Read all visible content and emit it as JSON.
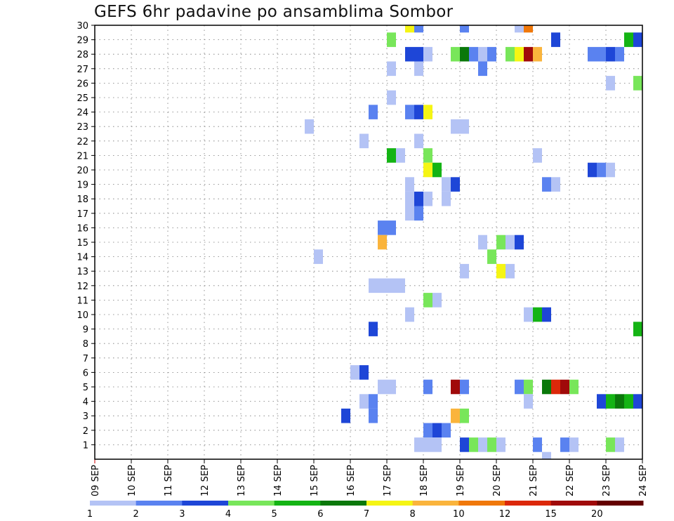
{
  "chart_data": {
    "type": "heatmap",
    "title": "GEFS 6hr padavine po ansamblima Sombor",
    "x_tick_labels": [
      "09 SEP",
      "10 SEP",
      "11 SEP",
      "12 SEP",
      "13 SEP",
      "14 SEP",
      "15 SEP",
      "16 SEP",
      "17 SEP",
      "18 SEP",
      "19 SEP",
      "20 SEP",
      "21 SEP",
      "22 SEP",
      "23 SEP",
      "24 SEP"
    ],
    "y_tick_labels": [
      "1",
      "2",
      "3",
      "4",
      "5",
      "6",
      "7",
      "8",
      "9",
      "10",
      "11",
      "12",
      "13",
      "14",
      "15",
      "16",
      "17",
      "18",
      "19",
      "20",
      "21",
      "22",
      "23",
      "24",
      "25",
      "26",
      "27",
      "28",
      "29",
      "30"
    ],
    "x_range_days": [
      9,
      24
    ],
    "y_range": [
      0,
      30
    ],
    "grid": true,
    "colorbar": {
      "labels": [
        "1",
        "2",
        "3",
        "4",
        "5",
        "6",
        "7",
        "8",
        "10",
        "12",
        "15",
        "20"
      ],
      "colors": [
        "#b4c3f5",
        "#5a82f0",
        "#1e46d7",
        "#78e65a",
        "#14b414",
        "#0a780a",
        "#f5f514",
        "#fab43c",
        "#f0780a",
        "#dc280a",
        "#a00a0a",
        "#640000"
      ]
    },
    "cells_note": "each cell: [member, day_start, day_end, color_level_index]",
    "cells": [
      [
        30,
        17.5,
        17.75,
        6
      ],
      [
        30,
        17.75,
        18.0,
        1
      ],
      [
        30,
        19.0,
        19.25,
        1
      ],
      [
        30,
        20.5,
        20.75,
        0
      ],
      [
        30,
        20.75,
        21.0,
        8
      ],
      [
        29,
        17.0,
        17.25,
        3
      ],
      [
        29,
        21.5,
        21.75,
        2
      ],
      [
        29,
        23.5,
        23.75,
        4
      ],
      [
        29,
        23.75,
        24.0,
        2
      ],
      [
        28,
        17.5,
        17.75,
        2
      ],
      [
        28,
        17.75,
        18.0,
        2
      ],
      [
        28,
        18.0,
        18.25,
        0
      ],
      [
        28,
        18.75,
        19.0,
        3
      ],
      [
        28,
        19.0,
        19.25,
        5
      ],
      [
        28,
        19.25,
        19.5,
        1
      ],
      [
        28,
        19.5,
        19.75,
        0
      ],
      [
        28,
        19.75,
        20.0,
        1
      ],
      [
        28,
        20.25,
        20.5,
        3
      ],
      [
        28,
        20.5,
        20.75,
        6
      ],
      [
        28,
        20.75,
        21.0,
        10
      ],
      [
        28,
        21.0,
        21.25,
        7
      ],
      [
        28,
        22.5,
        22.75,
        1
      ],
      [
        28,
        22.75,
        23.0,
        1
      ],
      [
        28,
        23.0,
        23.25,
        2
      ],
      [
        28,
        23.25,
        23.5,
        1
      ],
      [
        27,
        17.0,
        17.25,
        0
      ],
      [
        27,
        17.75,
        18.0,
        0
      ],
      [
        27,
        19.5,
        19.75,
        1
      ],
      [
        26,
        23.0,
        23.25,
        0
      ],
      [
        26,
        23.75,
        24.0,
        3
      ],
      [
        25,
        17.0,
        17.25,
        0
      ],
      [
        24,
        16.5,
        16.75,
        1
      ],
      [
        24,
        17.5,
        17.75,
        1
      ],
      [
        24,
        17.75,
        18.0,
        2
      ],
      [
        24,
        18.0,
        18.25,
        6
      ],
      [
        23,
        14.75,
        15.0,
        0
      ],
      [
        23,
        18.75,
        19.0,
        0
      ],
      [
        23,
        19.0,
        19.25,
        0
      ],
      [
        22,
        16.25,
        16.5,
        0
      ],
      [
        22,
        17.75,
        18.0,
        0
      ],
      [
        21,
        17.0,
        17.25,
        4
      ],
      [
        21,
        17.25,
        17.5,
        0
      ],
      [
        21,
        18.0,
        18.25,
        3
      ],
      [
        21,
        21.0,
        21.25,
        0
      ],
      [
        20,
        18.0,
        18.25,
        6
      ],
      [
        20,
        18.25,
        18.5,
        4
      ],
      [
        20,
        22.5,
        22.75,
        2
      ],
      [
        20,
        22.75,
        23.0,
        1
      ],
      [
        20,
        23.0,
        23.25,
        0
      ],
      [
        19,
        17.5,
        17.75,
        0
      ],
      [
        19,
        18.5,
        18.75,
        0
      ],
      [
        19,
        18.75,
        19.0,
        2
      ],
      [
        19,
        21.25,
        21.5,
        1
      ],
      [
        19,
        21.5,
        21.75,
        0
      ],
      [
        18,
        17.5,
        17.75,
        0
      ],
      [
        18,
        17.75,
        18.0,
        2
      ],
      [
        18,
        18.0,
        18.25,
        0
      ],
      [
        18,
        18.5,
        18.75,
        0
      ],
      [
        17,
        17.5,
        17.75,
        0
      ],
      [
        17,
        17.75,
        18.0,
        1
      ],
      [
        16,
        16.75,
        17.0,
        1
      ],
      [
        16,
        17.0,
        17.25,
        1
      ],
      [
        15,
        16.75,
        17.0,
        7
      ],
      [
        15,
        19.5,
        19.75,
        0
      ],
      [
        15,
        20.0,
        20.25,
        3
      ],
      [
        15,
        20.25,
        20.5,
        0
      ],
      [
        15,
        20.5,
        20.75,
        2
      ],
      [
        14,
        15.0,
        15.25,
        0
      ],
      [
        14,
        19.75,
        20.0,
        3
      ],
      [
        13,
        19.0,
        19.25,
        0
      ],
      [
        13,
        20.0,
        20.25,
        6
      ],
      [
        13,
        20.25,
        20.5,
        0
      ],
      [
        12,
        16.5,
        16.75,
        0
      ],
      [
        12,
        16.75,
        17.0,
        0
      ],
      [
        12,
        17.0,
        17.25,
        0
      ],
      [
        12,
        17.25,
        17.5,
        0
      ],
      [
        11,
        18.0,
        18.25,
        3
      ],
      [
        11,
        18.25,
        18.5,
        0
      ],
      [
        10,
        17.5,
        17.75,
        0
      ],
      [
        10,
        20.75,
        21.0,
        0
      ],
      [
        10,
        21.0,
        21.25,
        4
      ],
      [
        10,
        21.25,
        21.5,
        2
      ],
      [
        9,
        16.5,
        16.75,
        2
      ],
      [
        9,
        23.75,
        24.0,
        4
      ],
      [
        6,
        16.0,
        16.25,
        0
      ],
      [
        6,
        16.25,
        16.5,
        2
      ],
      [
        5,
        16.75,
        17.0,
        0
      ],
      [
        5,
        17.0,
        17.25,
        0
      ],
      [
        5,
        18.0,
        18.25,
        1
      ],
      [
        5,
        18.75,
        19.0,
        10
      ],
      [
        5,
        19.0,
        19.25,
        1
      ],
      [
        5,
        20.5,
        20.75,
        1
      ],
      [
        5,
        20.75,
        21.0,
        3
      ],
      [
        5,
        21.25,
        21.5,
        5
      ],
      [
        5,
        21.5,
        21.75,
        9
      ],
      [
        5,
        21.75,
        22.0,
        10
      ],
      [
        5,
        22.0,
        22.25,
        3
      ],
      [
        4,
        16.25,
        16.5,
        0
      ],
      [
        4,
        16.5,
        16.75,
        1
      ],
      [
        4,
        20.75,
        21.0,
        0
      ],
      [
        4,
        22.75,
        23.0,
        2
      ],
      [
        4,
        23.0,
        23.25,
        4
      ],
      [
        4,
        23.25,
        23.5,
        5
      ],
      [
        4,
        23.5,
        23.75,
        4
      ],
      [
        4,
        23.75,
        24.0,
        2
      ],
      [
        3,
        15.75,
        16.0,
        2
      ],
      [
        3,
        16.5,
        16.75,
        1
      ],
      [
        3,
        18.75,
        19.0,
        7
      ],
      [
        3,
        19.0,
        19.25,
        3
      ],
      [
        2,
        18.0,
        18.25,
        1
      ],
      [
        2,
        18.25,
        18.5,
        2
      ],
      [
        2,
        18.5,
        18.75,
        1
      ],
      [
        1,
        17.75,
        18.0,
        0
      ],
      [
        1,
        18.0,
        18.25,
        0
      ],
      [
        1,
        18.25,
        18.5,
        0
      ],
      [
        1,
        19.0,
        19.25,
        2
      ],
      [
        1,
        19.25,
        19.5,
        3
      ],
      [
        1,
        19.5,
        19.75,
        0
      ],
      [
        1,
        19.75,
        20.0,
        3
      ],
      [
        1,
        20.0,
        20.25,
        0
      ],
      [
        1,
        21.0,
        21.25,
        1
      ],
      [
        1,
        21.75,
        22.0,
        1
      ],
      [
        1,
        22.0,
        22.25,
        0
      ],
      [
        1,
        23.0,
        23.25,
        3
      ],
      [
        1,
        23.25,
        23.5,
        0
      ],
      [
        0,
        21.25,
        21.5,
        0
      ]
    ]
  }
}
